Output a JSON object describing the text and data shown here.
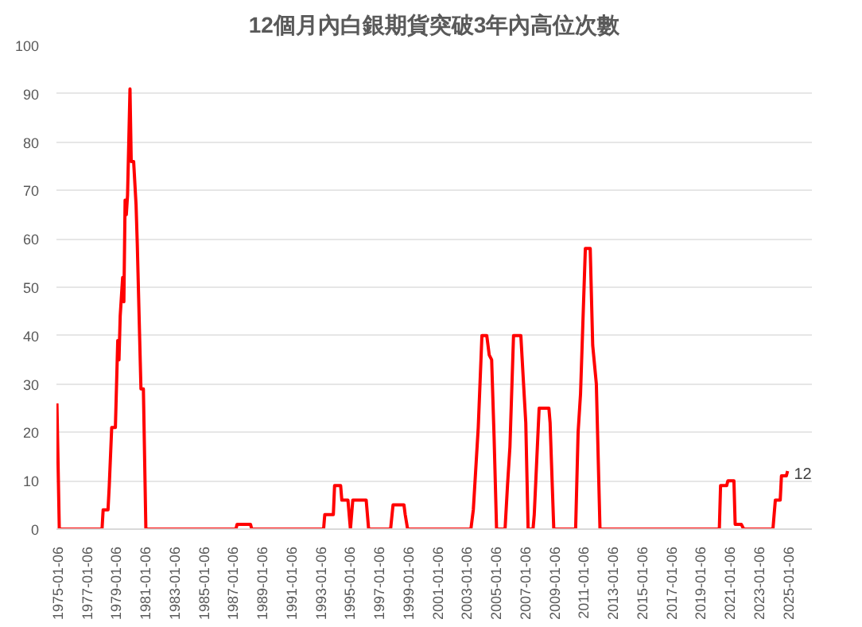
{
  "chart_data": {
    "type": "line",
    "title": "12個月內白銀期貨突破3年內高位次數",
    "x": [
      "1975-01",
      "1975-03",
      "1978-02",
      "1978-03",
      "1978-07",
      "1978-08",
      "1978-10",
      "1979-01",
      "1979-03",
      "1979-04",
      "1979-05",
      "1979-07",
      "1979-08",
      "1979-09",
      "1979-10",
      "1979-11",
      "1980-01",
      "1980-02",
      "1980-04",
      "1980-06",
      "1980-07",
      "1980-10",
      "1980-12",
      "1981-02",
      "1987-04",
      "1987-05",
      "1988-04",
      "1988-05",
      "1993-04",
      "1993-05",
      "1993-12",
      "1994-01",
      "1994-06",
      "1994-07",
      "1994-12",
      "1995-02",
      "1995-04",
      "1996-03",
      "1996-05",
      "1997-11",
      "1998-01",
      "1998-10",
      "1998-11",
      "1999-01",
      "2003-05",
      "2003-07",
      "2003-11",
      "2004-02",
      "2004-06",
      "2004-08",
      "2004-10",
      "2004-12",
      "2005-02",
      "2005-09",
      "2005-11",
      "2006-01",
      "2006-04",
      "2006-10",
      "2006-12",
      "2007-02",
      "2007-04",
      "2007-08",
      "2007-09",
      "2007-11",
      "2008-01",
      "2008-09",
      "2008-10",
      "2009-01",
      "2010-07",
      "2010-09",
      "2010-11",
      "2011-03",
      "2011-07",
      "2011-09",
      "2011-12",
      "2012-03",
      "2020-05",
      "2020-06",
      "2020-11",
      "2020-12",
      "2021-05",
      "2021-06",
      "2021-11",
      "2022-01",
      "2024-01",
      "2024-03",
      "2024-07",
      "2024-08",
      "2024-12",
      "2025-01"
    ],
    "series": [
      {
        "color": "#ff0000",
        "values": [
          26,
          0,
          0,
          4,
          4,
          9,
          21,
          21,
          39,
          35,
          44,
          52,
          47,
          68,
          65,
          69,
          91,
          76,
          76,
          67,
          59,
          29,
          29,
          0,
          0,
          1,
          1,
          0,
          0,
          3,
          3,
          9,
          9,
          6,
          6,
          0,
          6,
          6,
          0,
          0,
          5,
          5,
          3,
          0,
          0,
          4,
          21,
          40,
          40,
          36,
          35,
          19,
          0,
          0,
          9,
          17,
          40,
          40,
          31,
          22,
          0,
          0,
          3,
          14,
          25,
          25,
          22,
          0,
          0,
          20,
          28,
          58,
          58,
          38,
          30,
          0,
          0,
          9,
          9,
          10,
          10,
          1,
          1,
          0,
          0,
          6,
          6,
          11,
          11,
          12
        ]
      }
    ],
    "annotations": [
      {
        "text": "12",
        "x": "2025-01",
        "y": 12
      }
    ],
    "xlim": [
      "1974-12-20",
      "2026-09-01"
    ],
    "xticks": [
      "1975-01-06",
      "1977-01-06",
      "1979-01-06",
      "1981-01-06",
      "1983-01-06",
      "1985-01-06",
      "1987-01-06",
      "1989-01-06",
      "1991-01-06",
      "1993-01-06",
      "1995-01-06",
      "1997-01-06",
      "1999-01-06",
      "2001-01-06",
      "2003-01-06",
      "2005-01-06",
      "2007-01-06",
      "2009-01-06",
      "2011-01-06",
      "2013-01-06",
      "2015-01-06",
      "2017-01-06",
      "2019-01-06",
      "2021-01-06",
      "2023-01-06",
      "2025-01-06"
    ],
    "ylim": [
      0,
      100
    ],
    "yticks": [
      0,
      10,
      20,
      30,
      40,
      50,
      60,
      70,
      80,
      90,
      100
    ],
    "grid": "y",
    "line_style": "solid",
    "marker": "none"
  }
}
